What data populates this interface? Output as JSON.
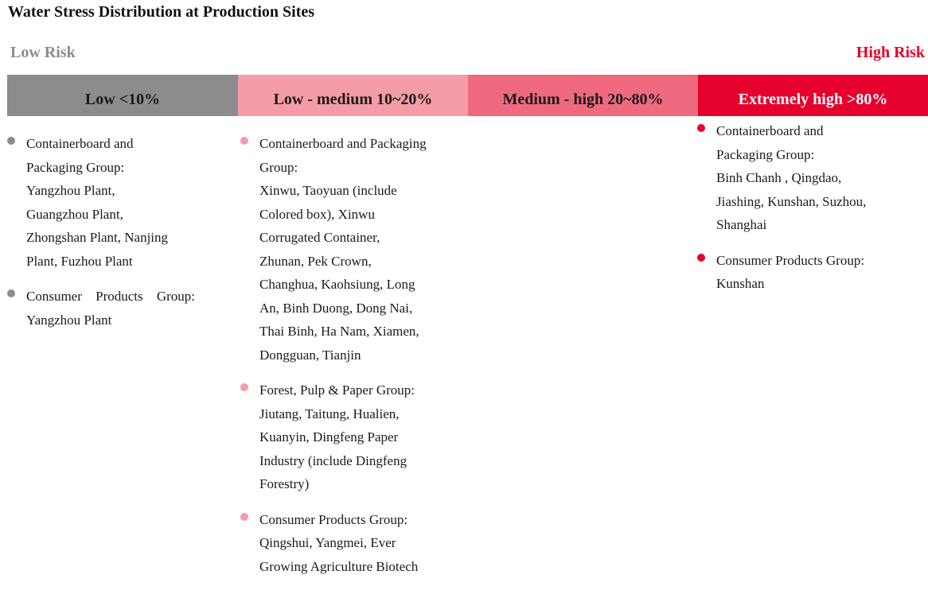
{
  "title": "Water Stress Distribution at Production Sites",
  "risk_scale": {
    "low_label": "Low Risk",
    "high_label": "High Risk",
    "low_color": "#8c8c8c",
    "high_color": "#e5002d"
  },
  "categories": [
    {
      "label": "Low <10%",
      "color": "#8c8c8c",
      "text_color": "#1a1a1a",
      "items": [
        {
          "dot_color": "#8c8c8c",
          "lines": [
            "Containerboard and",
            "Packaging Group:",
            "Yangzhou Plant,",
            "Guangzhou Plant,",
            "Zhongshan Plant, Nanjing",
            "Plant, Fuzhou Plant"
          ]
        },
        {
          "dot_color": "#8c8c8c",
          "lines": [
            "Consumer Products Group:",
            "Yangzhou Plant"
          ]
        }
      ]
    },
    {
      "label": "Low - medium 10~20%",
      "color": "#f49ca8",
      "text_color": "#1a1a1a",
      "items": [
        {
          "dot_color": "#f49ca8",
          "lines": [
            "Containerboard and Packaging",
            "Group:",
            "Xinwu, Taoyuan (include",
            "Colored box), Xinwu",
            "Corrugated Container,",
            "Zhunan, Pek Crown,",
            "Changhua, Kaohsiung, Long",
            "An, Binh Duong, Dong Nai,",
            "Thai Binh, Ha Nam, Xiamen,",
            "Dongguan, Tianjin"
          ]
        },
        {
          "dot_color": "#f49ca8",
          "lines": [
            "Forest, Pulp & Paper Group:",
            "Jiutang, Taitung, Hualien,",
            "Kuanyin, Dingfeng Paper",
            "Industry (include Dingfeng",
            "Forestry)"
          ]
        },
        {
          "dot_color": "#f49ca8",
          "lines": [
            "Consumer Products Group:",
            "Qingshui, Yangmei, Ever",
            "Growing Agriculture Biotech"
          ]
        }
      ]
    },
    {
      "label": "Medium - high 20~80%",
      "color": "#ef6a7e",
      "text_color": "#1a1a1a",
      "items": []
    },
    {
      "label": "Extremely high >80%",
      "color": "#e5002d",
      "text_color": "#ffffff",
      "items": [
        {
          "dot_color": "#e5002d",
          "lines": [
            "Containerboard and",
            "Packaging Group:",
            "Binh Chanh , Qingdao,",
            "Jiashing, Kunshan, Suzhou,",
            "Shanghai"
          ]
        },
        {
          "dot_color": "#e5002d",
          "lines": [
            "Consumer Products Group:",
            "Kunshan"
          ]
        }
      ]
    }
  ]
}
